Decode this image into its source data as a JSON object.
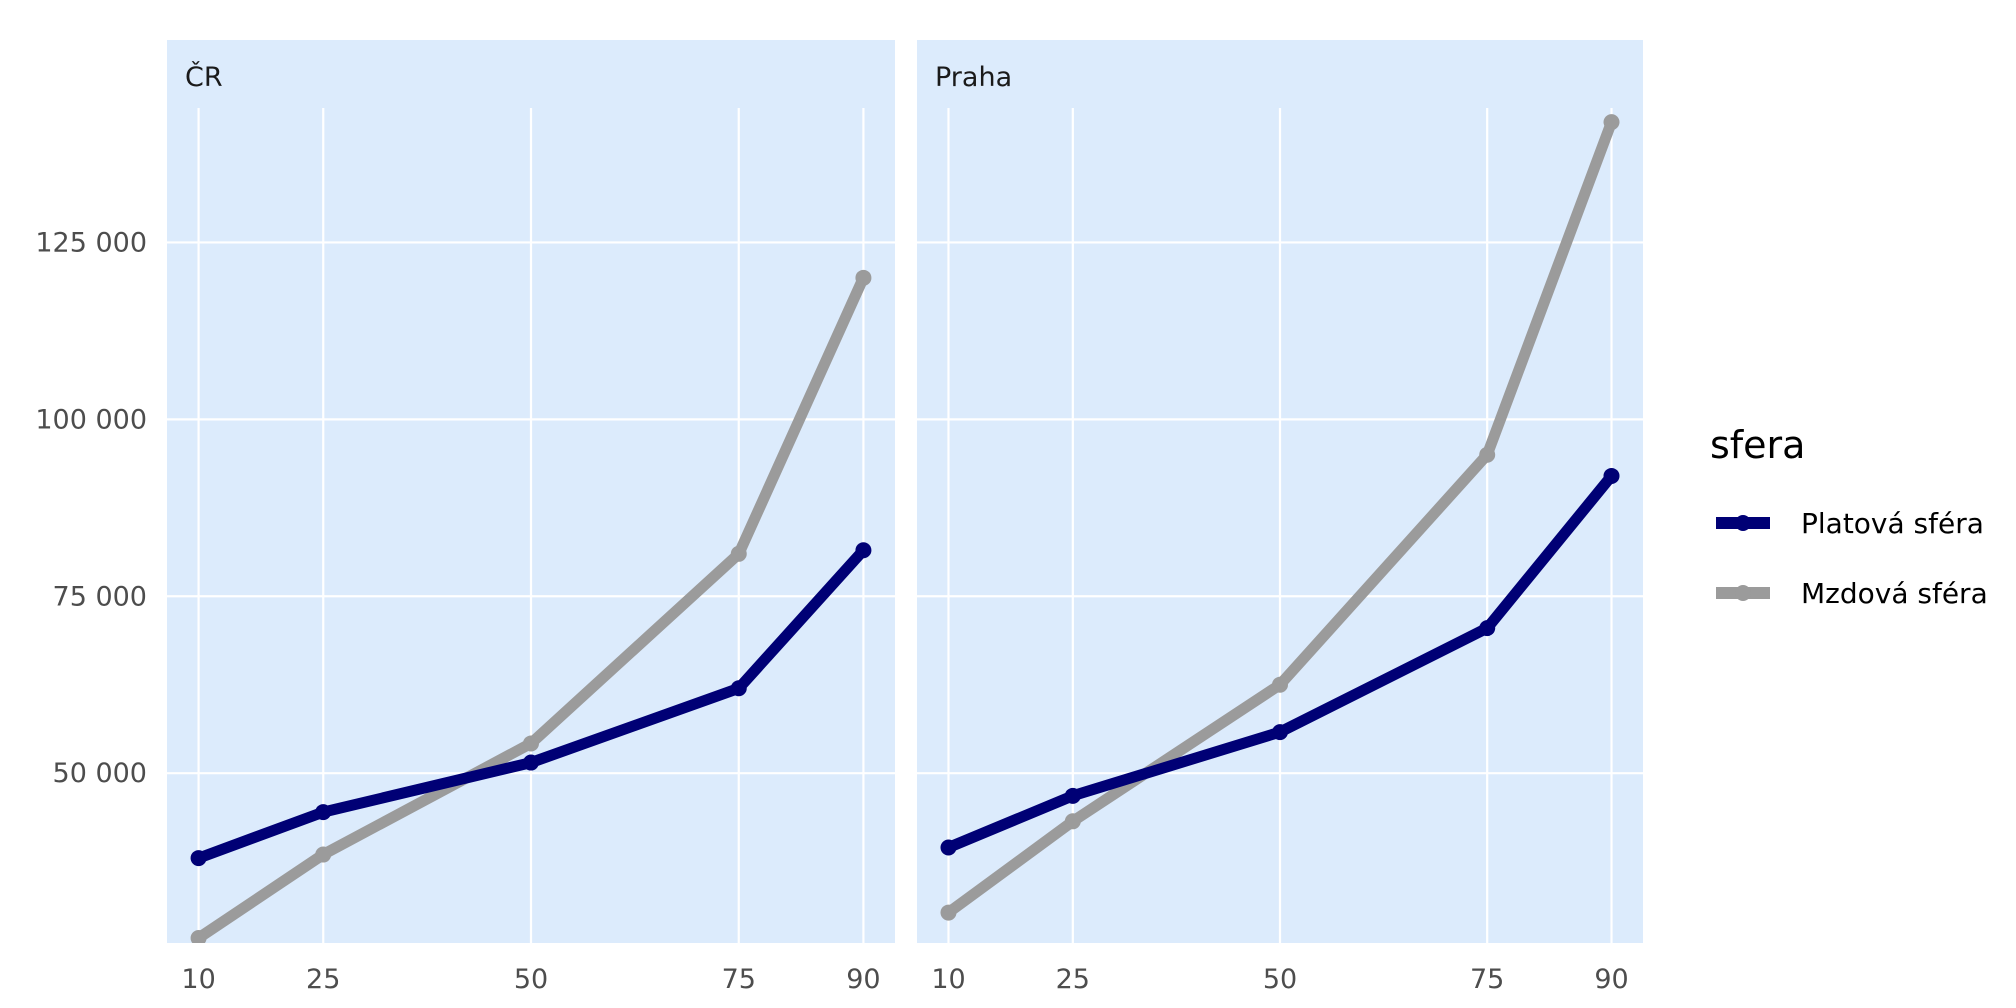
{
  "chart_data": {
    "type": "line",
    "legend": {
      "title": "sfera",
      "placement": "right"
    },
    "x": [
      10,
      25,
      50,
      75,
      90
    ],
    "x_ticks": [
      "10",
      "25",
      "50",
      "75",
      "90"
    ],
    "y_ticks": [
      {
        "value": 50000,
        "label": "50 000"
      },
      {
        "value": 75000,
        "label": "75 000"
      },
      {
        "value": 100000,
        "label": "100 000"
      },
      {
        "value": 125000,
        "label": "125 000"
      }
    ],
    "xlim": [
      6.2,
      93.8
    ],
    "ylim": [
      26000,
      144000
    ],
    "grid": true,
    "series_styles": [
      {
        "name": "Platová sféra",
        "color": "#000075"
      },
      {
        "name": "Mzdová sféra",
        "color": "#9b9b9b"
      }
    ],
    "panels": [
      {
        "strip": "ČR",
        "series": [
          {
            "name": "Platová sféra",
            "values": [
              38000,
              44500,
              51500,
              62000,
              81500
            ]
          },
          {
            "name": "Mzdová sféra",
            "values": [
              26700,
              38500,
              54200,
              81000,
              120000
            ]
          }
        ]
      },
      {
        "strip": "Praha",
        "series": [
          {
            "name": "Platová sféra",
            "values": [
              39500,
              46800,
              55800,
              70500,
              92000
            ]
          },
          {
            "name": "Mzdová sféra",
            "values": [
              30300,
              43200,
              62500,
              95000,
              142000
            ]
          }
        ]
      }
    ]
  }
}
